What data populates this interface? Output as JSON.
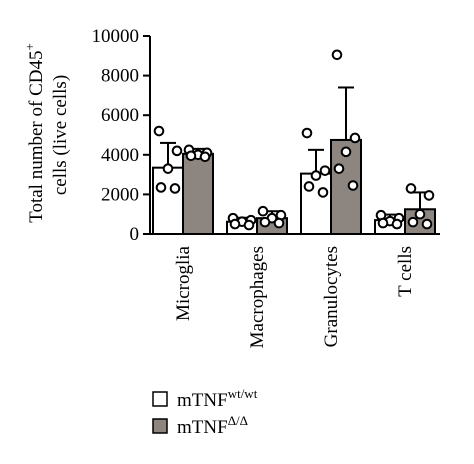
{
  "chart_data": {
    "type": "bar",
    "ylabel_line1": "Total number of CD45",
    "ylabel_line1_sup": "+",
    "ylabel_line2": "cells (live cells)",
    "ylim": [
      0,
      10000
    ],
    "yticks": [
      0,
      2000,
      4000,
      6000,
      8000,
      10000
    ],
    "ytick_labels": [
      "0",
      "2000",
      "4000",
      "6000",
      "8000",
      "10000"
    ],
    "categories": [
      "Microglia",
      "Macrophages",
      "Granulocytes",
      "T cells"
    ],
    "series": [
      {
        "name": "mTNF",
        "name_sup": "wt/wt",
        "fill": "#ffffff",
        "values": [
          3350,
          620,
          3050,
          700
        ],
        "errors": [
          1250,
          200,
          1200,
          280
        ],
        "points": [
          [
            5200,
            4200,
            3300,
            2350,
            2300
          ],
          [
            800,
            700,
            620,
            500,
            450
          ],
          [
            5100,
            3200,
            2950,
            2400,
            2100
          ],
          [
            950,
            800,
            650,
            550,
            500
          ]
        ]
      },
      {
        "name": "mTNF",
        "name_sup": "Δ/Δ",
        "fill": "#8c8580",
        "values": [
          4050,
          800,
          4750,
          1250
        ],
        "errors": [
          250,
          350,
          2650,
          850
        ],
        "points": [
          [
            4250,
            4100,
            4000,
            3950,
            3900
          ],
          [
            1150,
            950,
            800,
            600,
            550
          ],
          [
            9050,
            4850,
            4150,
            3300,
            2450
          ],
          [
            2300,
            1950,
            1000,
            600,
            500
          ]
        ]
      }
    ],
    "legend_position": "bottom-center",
    "grid": false
  }
}
